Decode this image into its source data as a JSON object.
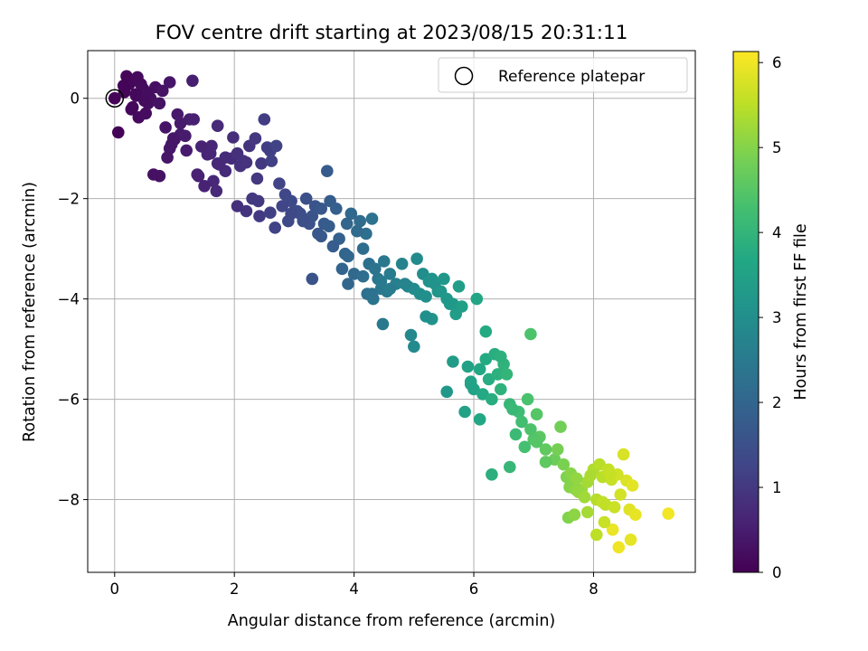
{
  "chart_data": {
    "type": "scatter",
    "title": "FOV centre drift starting at 2023/08/15 20:31:11",
    "xlabel": "Angular distance from reference (arcmin)",
    "ylabel": "Rotation from reference (arcmin)",
    "xlim": [
      -0.45,
      9.7
    ],
    "ylim": [
      -9.45,
      0.95
    ],
    "x_ticks": [
      "0",
      "2",
      "4",
      "6",
      "8"
    ],
    "y_ticks": [
      "0",
      "−2",
      "−4",
      "−6",
      "−8"
    ],
    "grid": true,
    "legend": {
      "placement": "top-right",
      "entries": [
        "Reference platepar"
      ]
    },
    "reference_point": {
      "x": 0,
      "y": 0
    },
    "colorbar": {
      "label": "Hours from first FF file",
      "range": [
        0,
        6.13
      ],
      "ticks": [
        "0",
        "1",
        "2",
        "3",
        "4",
        "5",
        "6"
      ],
      "colormap": "viridis"
    },
    "x": [
      0.0,
      0.24,
      0.36,
      0.48,
      0.16,
      0.68,
      0.28,
      0.4,
      0.52,
      0.8,
      0.92,
      0.32,
      0.56,
      0.2,
      0.44,
      0.06,
      0.6,
      1.3,
      0.38,
      0.3,
      0.85,
      1.05,
      1.0,
      0.92,
      1.2,
      0.88,
      1.1,
      0.95,
      0.75,
      1.4,
      1.25,
      1.32,
      1.62,
      1.72,
      1.55,
      1.98,
      1.7,
      1.95,
      2.1,
      2.05,
      1.85,
      1.65,
      0.65,
      2.5,
      2.25,
      1.38,
      2.15,
      1.45,
      1.72,
      2.2,
      2.35,
      2.6,
      2.45,
      2.55,
      2.38,
      2.7,
      2.62,
      2.3,
      2.42,
      2.85,
      2.75,
      2.95,
      3.1,
      2.8,
      3.0,
      3.2,
      3.35,
      3.15,
      3.45,
      3.25,
      3.55,
      3.6,
      2.68,
      3.05,
      3.3,
      3.5,
      3.7,
      3.4,
      3.58,
      3.95,
      3.88,
      4.1,
      4.3,
      4.2,
      4.15,
      4.25,
      3.85,
      3.75,
      4.05,
      4.35,
      4.5,
      4.4,
      3.8,
      4.0,
      3.9,
      4.22,
      4.45,
      4.6,
      4.7,
      4.8,
      4.55,
      4.32,
      4.48,
      4.9,
      5.0,
      5.15,
      5.3,
      5.4,
      5.1,
      5.2,
      4.95,
      5.05,
      5.25,
      5.35,
      5.45,
      5.55,
      5.65,
      5.75,
      5.6,
      5.8,
      5.7,
      4.85,
      5.5,
      5.3,
      5.9,
      6.05,
      6.2,
      6.35,
      6.5,
      6.1,
      6.25,
      6.4,
      6.55,
      6.0,
      5.95,
      6.15,
      6.3,
      6.45,
      6.6,
      6.75,
      6.9,
      7.05,
      6.65,
      6.8,
      6.95,
      7.1,
      6.7,
      6.85,
      7.0,
      7.2,
      7.35,
      7.5,
      6.6,
      6.3,
      7.55,
      7.65,
      7.8,
      7.9,
      7.6,
      7.7,
      8.0,
      8.15,
      8.3,
      8.45,
      7.75,
      7.85,
      8.05,
      8.2,
      8.35,
      8.55,
      8.65,
      7.62,
      7.72,
      7.95,
      8.1,
      8.25,
      8.4,
      8.6,
      8.7,
      7.58,
      7.68,
      9.25,
      8.32,
      8.42,
      8.05,
      8.18,
      8.62,
      7.9,
      8.5,
      4.45,
      6.2,
      6.95,
      5.55,
      5.85,
      4.15,
      3.65,
      3.45,
      2.95,
      2.2,
      1.5,
      1.1,
      0.75,
      0.55,
      0.98,
      1.18,
      2.4,
      3.9,
      5.2,
      6.45,
      7.45,
      8.28,
      7.2,
      6.1,
      5.0,
      3.3,
      2.05,
      1.6,
      0.5,
      0.35,
      0.15,
      1.85,
      2.6,
      3.15,
      4.6,
      5.95,
      7.4,
      8.15,
      7.05,
      5.65,
      4.3,
      2.9,
      1.75
    ],
    "y": [
      0.0,
      0.28,
      0.05,
      0.18,
      0.12,
      0.22,
      -0.22,
      -0.38,
      -0.3,
      0.15,
      0.32,
      0.36,
      -0.1,
      0.44,
      0.28,
      -0.68,
      0.0,
      0.35,
      0.42,
      -0.18,
      -0.58,
      -0.32,
      -0.82,
      -1.0,
      -1.04,
      -1.18,
      -0.72,
      -0.92,
      -1.55,
      -1.55,
      -0.42,
      -0.42,
      -0.95,
      -1.3,
      -1.12,
      -0.78,
      -1.85,
      -1.2,
      -1.35,
      -1.1,
      -1.45,
      -1.65,
      -1.52,
      -0.42,
      -0.95,
      -1.52,
      -1.25,
      -0.96,
      -0.55,
      -1.28,
      -0.8,
      -1.05,
      -1.3,
      -0.98,
      -1.6,
      -0.95,
      -1.25,
      -2.0,
      -2.35,
      -1.92,
      -1.7,
      -2.05,
      -2.3,
      -2.15,
      -2.25,
      -2.0,
      -2.15,
      -2.4,
      -2.2,
      -2.5,
      -1.45,
      -2.05,
      -2.58,
      -2.25,
      -2.35,
      -2.5,
      -2.2,
      -2.7,
      -2.55,
      -2.3,
      -2.5,
      -2.45,
      -2.4,
      -2.7,
      -3.0,
      -3.3,
      -3.1,
      -2.8,
      -2.65,
      -3.4,
      -3.25,
      -3.6,
      -3.4,
      -3.5,
      -3.7,
      -3.9,
      -3.8,
      -3.5,
      -3.7,
      -3.3,
      -3.85,
      -4.0,
      -4.5,
      -3.75,
      -3.8,
      -3.5,
      -3.6,
      -3.85,
      -3.9,
      -3.95,
      -4.72,
      -3.2,
      -3.65,
      -3.7,
      -3.85,
      -4.0,
      -4.1,
      -3.75,
      -4.1,
      -4.15,
      -4.3,
      -3.7,
      -3.6,
      -4.4,
      -5.35,
      -4.0,
      -5.2,
      -5.1,
      -5.3,
      -5.4,
      -5.6,
      -5.5,
      -5.5,
      -5.8,
      -5.7,
      -5.9,
      -6.0,
      -5.8,
      -6.1,
      -6.25,
      -6.0,
      -6.3,
      -6.2,
      -6.45,
      -6.6,
      -6.75,
      -6.7,
      -6.95,
      -6.8,
      -7.0,
      -7.2,
      -7.3,
      -7.35,
      -7.5,
      -7.55,
      -7.7,
      -7.8,
      -7.65,
      -7.75,
      -7.8,
      -7.4,
      -7.55,
      -7.6,
      -7.9,
      -7.85,
      -7.95,
      -8.0,
      -8.1,
      -8.15,
      -7.62,
      -7.72,
      -7.48,
      -7.58,
      -7.52,
      -7.3,
      -7.4,
      -7.5,
      -8.2,
      -8.3,
      -8.36,
      -8.3,
      -8.28,
      -8.6,
      -8.95,
      -8.7,
      -8.45,
      -8.8,
      -8.25,
      -7.1,
      -3.65,
      -4.65,
      -4.7,
      -5.85,
      -6.25,
      -3.55,
      -2.95,
      -2.75,
      -2.3,
      -2.25,
      -1.75,
      -0.5,
      -0.1,
      0.1,
      -0.8,
      -0.75,
      -2.05,
      -3.15,
      -4.35,
      -5.15,
      -6.55,
      -7.5,
      -7.25,
      -6.4,
      -4.95,
      -3.6,
      -2.15,
      -1.1,
      -0.05,
      0.08,
      0.25,
      -1.18,
      -2.28,
      -2.45,
      -3.8,
      -5.65,
      -7.0,
      -8.05,
      -6.85,
      -5.25,
      -3.9,
      -2.45,
      -1.32
    ],
    "hours": [
      0.05,
      0.1,
      0.14,
      0.18,
      0.08,
      0.26,
      0.12,
      0.16,
      0.2,
      0.31,
      0.35,
      0.13,
      0.22,
      0.09,
      0.17,
      0.04,
      0.24,
      0.52,
      0.15,
      0.13,
      0.34,
      0.42,
      0.4,
      0.37,
      0.48,
      0.36,
      0.44,
      0.38,
      0.3,
      0.56,
      0.5,
      0.54,
      0.66,
      0.7,
      0.62,
      0.8,
      0.7,
      0.79,
      0.86,
      0.84,
      0.75,
      0.68,
      0.27,
      1.1,
      0.92,
      0.58,
      0.88,
      0.6,
      0.72,
      0.9,
      0.98,
      1.15,
      1.02,
      1.12,
      1.0,
      1.2,
      1.16,
      1.0,
      1.05,
      1.3,
      1.22,
      1.36,
      1.45,
      1.28,
      1.4,
      1.5,
      1.6,
      1.48,
      1.68,
      1.55,
      1.75,
      1.78,
      1.2,
      1.42,
      1.58,
      1.72,
      1.85,
      1.65,
      1.78,
      2.05,
      2.0,
      2.15,
      2.3,
      2.22,
      2.18,
      2.26,
      1.98,
      1.9,
      2.1,
      2.35,
      2.45,
      2.38,
      1.95,
      2.08,
      2.02,
      2.25,
      2.42,
      2.55,
      2.62,
      2.72,
      2.5,
      2.33,
      2.45,
      2.8,
      2.9,
      3.0,
      3.1,
      3.15,
      2.98,
      3.05,
      2.85,
      2.92,
      3.08,
      3.12,
      3.2,
      3.25,
      3.32,
      3.4,
      3.28,
      3.45,
      3.38,
      2.75,
      3.22,
      3.12,
      3.5,
      3.6,
      3.72,
      3.82,
      3.95,
      3.65,
      3.78,
      3.88,
      4.0,
      3.55,
      3.52,
      3.7,
      3.8,
      3.92,
      4.05,
      4.2,
      4.35,
      4.48,
      4.1,
      4.25,
      4.4,
      4.55,
      4.15,
      4.3,
      4.45,
      4.62,
      4.75,
      4.9,
      4.05,
      3.85,
      4.95,
      5.05,
      5.2,
      5.3,
      5.0,
      5.1,
      5.4,
      5.5,
      5.6,
      5.72,
      5.15,
      5.25,
      5.45,
      5.55,
      5.65,
      5.8,
      5.88,
      5.02,
      5.12,
      5.35,
      5.48,
      5.58,
      5.7,
      5.85,
      5.92,
      4.98,
      5.08,
      6.02,
      5.95,
      6.0,
      5.52,
      5.62,
      5.9,
      5.3,
      5.78,
      2.5,
      3.72,
      4.38,
      3.25,
      3.48,
      2.2,
      1.8,
      1.68,
      1.35,
      0.92,
      0.6,
      0.44,
      0.29,
      0.21,
      0.38,
      0.47,
      1.02,
      2.02,
      3.05,
      3.9,
      4.8,
      5.6,
      4.6,
      3.65,
      2.9,
      1.58,
      0.84,
      0.64,
      0.19,
      0.14,
      0.07,
      0.75,
      1.15,
      1.48,
      2.55,
      3.52,
      4.85,
      5.55,
      4.5,
      3.35,
      2.3,
      1.35,
      0.7
    ]
  }
}
